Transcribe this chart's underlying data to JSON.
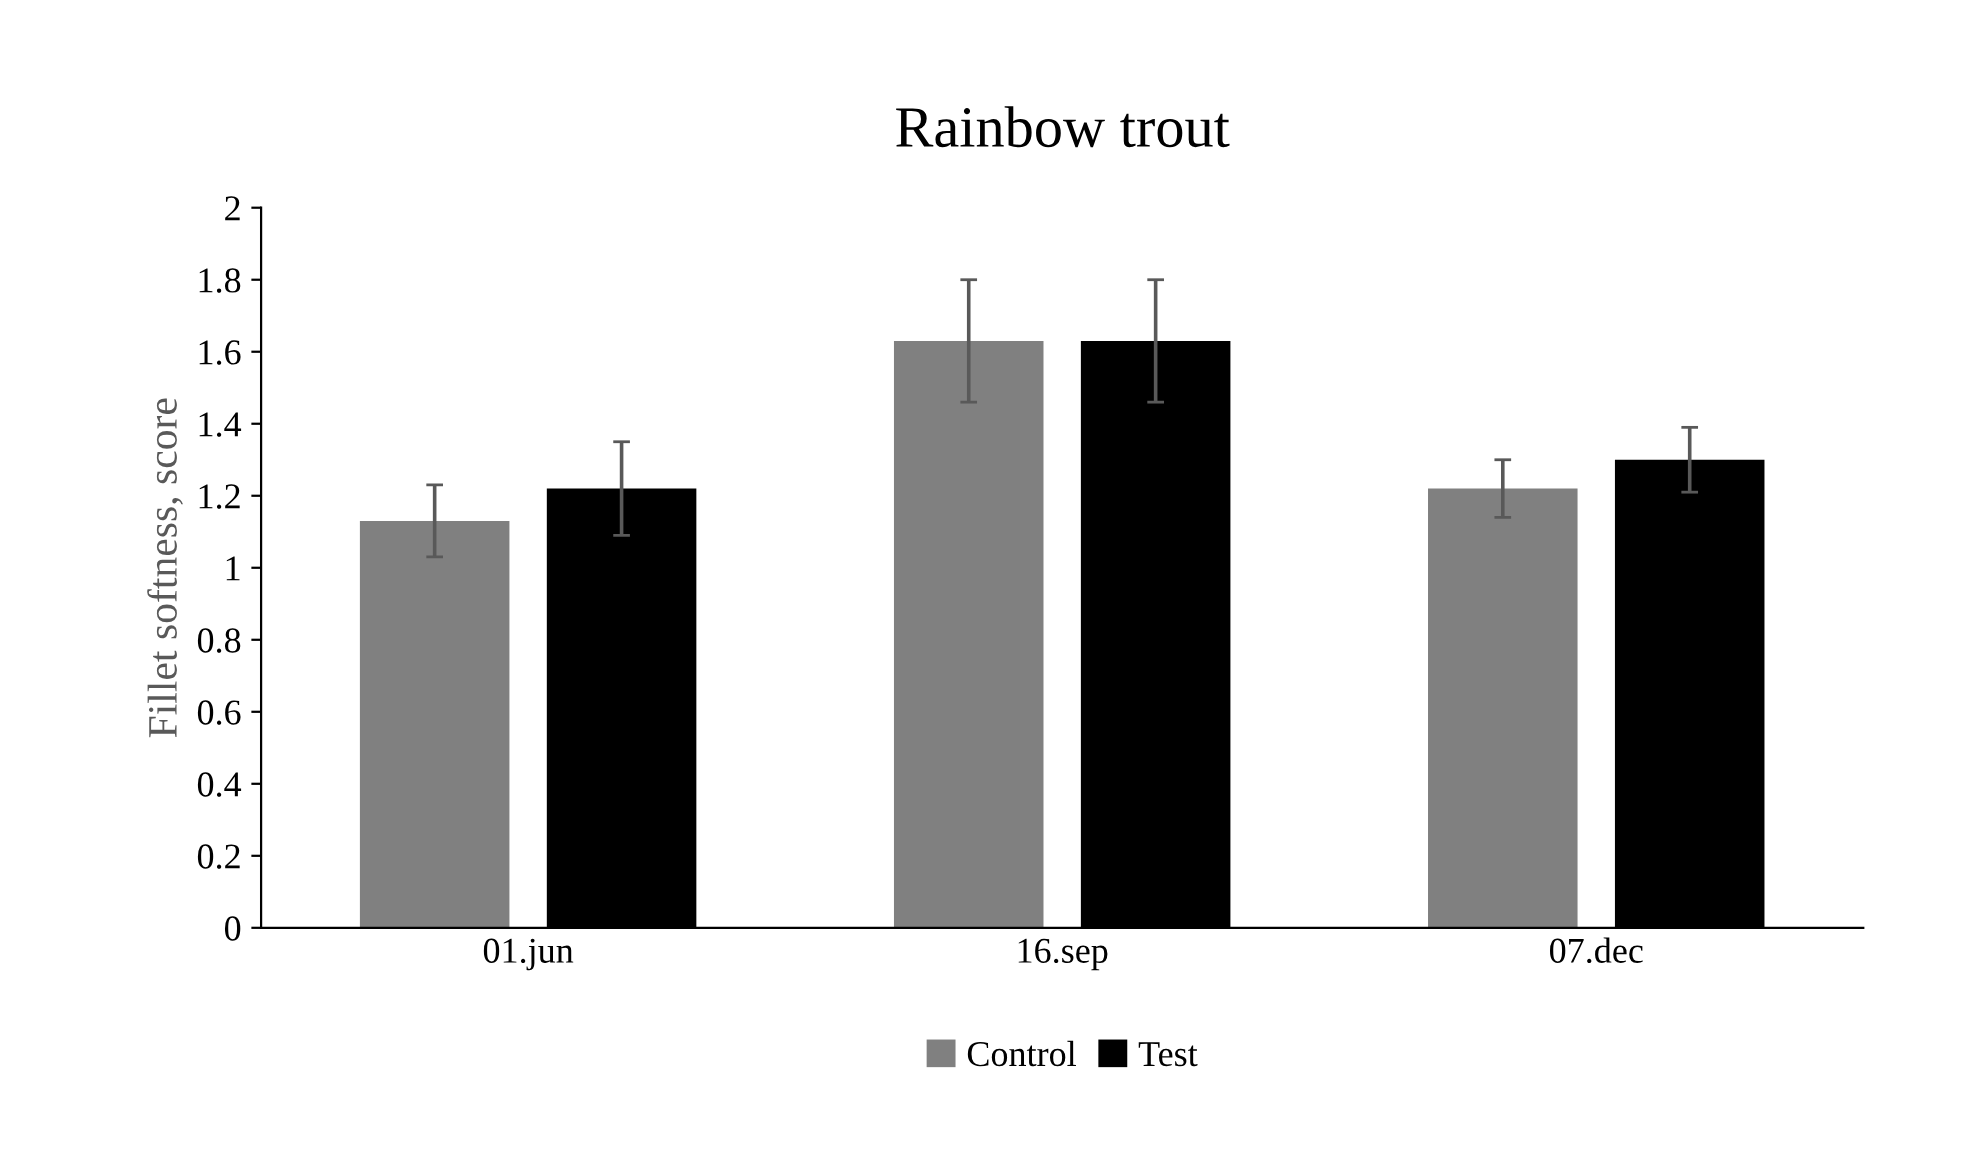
{
  "chart_data": {
    "type": "bar",
    "title": "Rainbow trout",
    "ylabel": "Fillet softness, score",
    "categories": [
      "01.jun",
      "16.sep",
      "07.dec"
    ],
    "series": [
      {
        "name": "Control",
        "color": "#808080",
        "values": [
          1.13,
          1.63,
          1.22
        ],
        "errors": [
          0.1,
          0.17,
          0.08
        ]
      },
      {
        "name": "Test",
        "color": "#000000",
        "values": [
          1.22,
          1.63,
          1.3
        ],
        "errors": [
          0.13,
          0.17,
          0.09
        ]
      }
    ],
    "ylim": [
      0,
      2
    ],
    "yticks": [
      0,
      0.2,
      0.4,
      0.6,
      0.8,
      1,
      1.2,
      1.4,
      1.6,
      1.8,
      2
    ],
    "grid": false,
    "legend": "bottom"
  }
}
